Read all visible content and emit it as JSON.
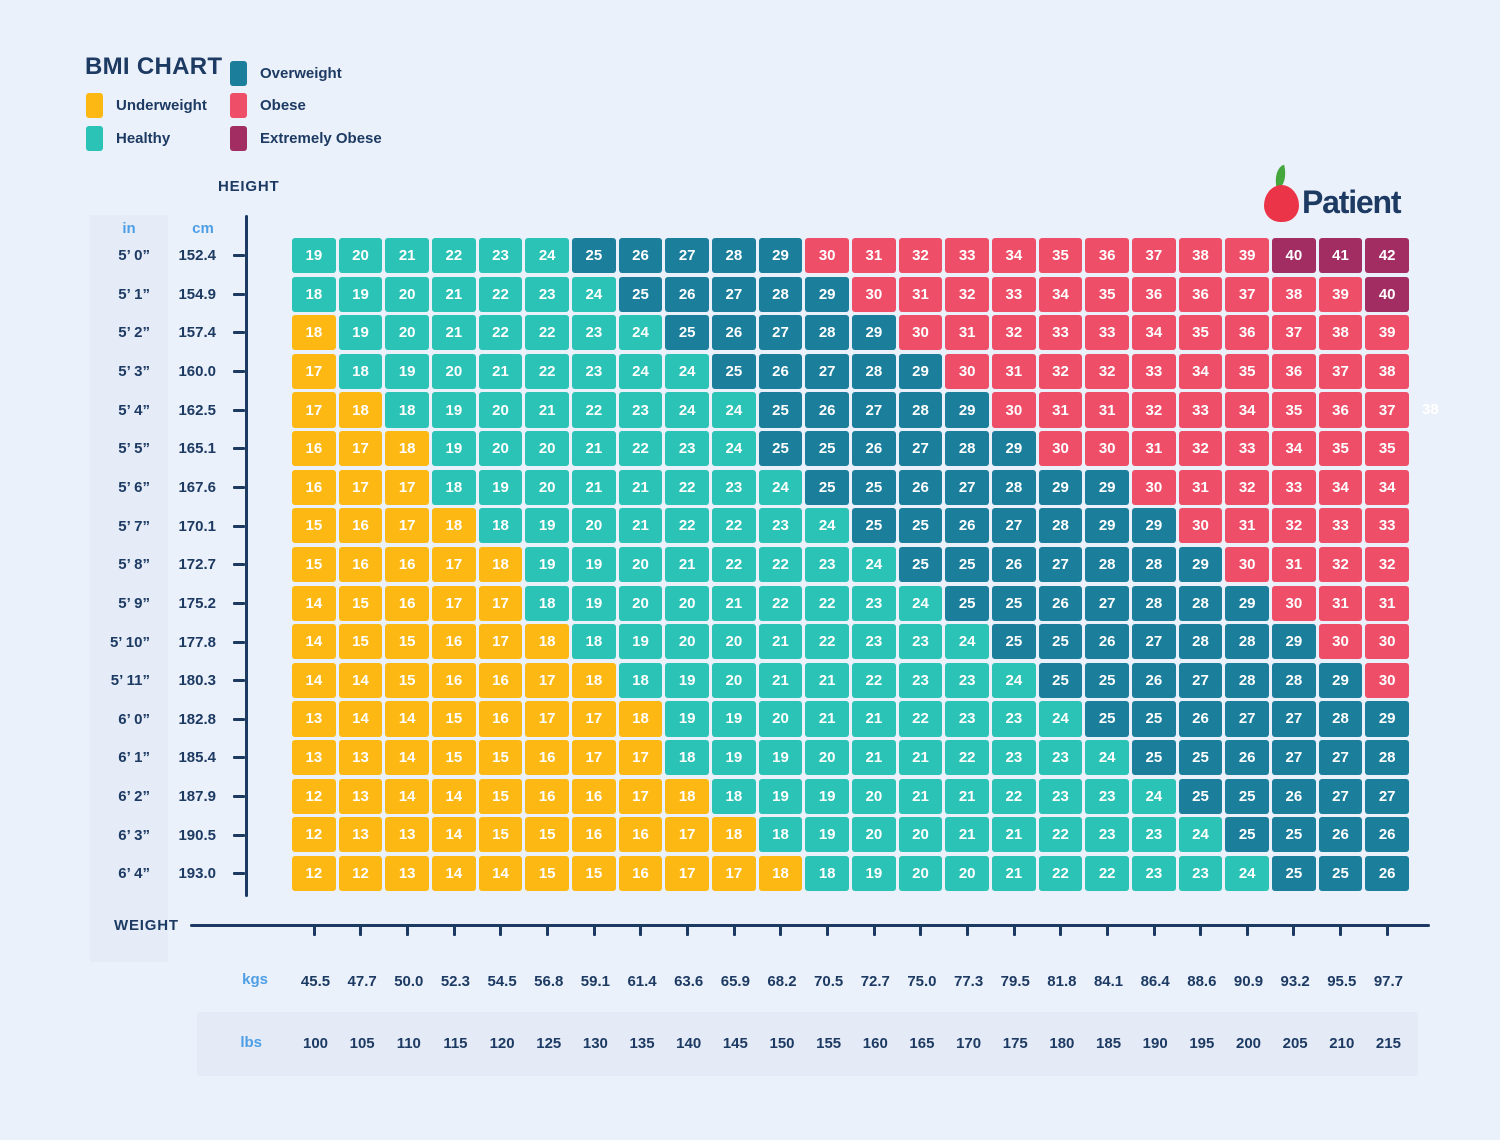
{
  "title": "BMI CHART",
  "legend": [
    {
      "key": "U",
      "label": "Underweight",
      "color": "#FDB813"
    },
    {
      "key": "H",
      "label": "Healthy",
      "color": "#2BC3B5"
    },
    {
      "key": "O",
      "label": "Overweight",
      "color": "#1B7E9B"
    },
    {
      "key": "B",
      "label": "Obese",
      "color": "#EF4E68"
    },
    {
      "key": "X",
      "label": "Extremely Obese",
      "color": "#A12D63"
    }
  ],
  "logo": {
    "brand": "Patient"
  },
  "axes": {
    "height_label": "HEIGHT",
    "weight_label": "WEIGHT",
    "in_header": "in",
    "cm_header": "cm",
    "kgs_label": "kgs",
    "lbs_label": "lbs"
  },
  "colors": {
    "background": "#EBF1FA",
    "band": "#E5ECF7",
    "navy_text": "#1D3A63",
    "unit_blue": "#4D9EE5",
    "apple_red": "#EB3448",
    "leaf_green": "#45A63C"
  },
  "stray_value": "38",
  "chart_data": {
    "type": "heatmap",
    "title": "BMI CHART",
    "x_axis": {
      "label": "WEIGHT",
      "kgs": [
        "45.5",
        "47.7",
        "50.0",
        "52.3",
        "54.5",
        "56.8",
        "59.1",
        "61.4",
        "63.6",
        "65.9",
        "68.2",
        "70.5",
        "72.7",
        "75.0",
        "77.3",
        "79.5",
        "81.8",
        "84.1",
        "86.4",
        "88.6",
        "90.9",
        "93.2",
        "95.5",
        "97.7"
      ],
      "lbs": [
        "100",
        "105",
        "110",
        "115",
        "120",
        "125",
        "130",
        "135",
        "140",
        "145",
        "150",
        "155",
        "160",
        "165",
        "170",
        "175",
        "180",
        "185",
        "190",
        "195",
        "200",
        "205",
        "210",
        "215"
      ]
    },
    "y_axis": {
      "label": "HEIGHT",
      "units": [
        "in",
        "cm"
      ]
    },
    "category_names": {
      "U": "Underweight",
      "H": "Healthy",
      "O": "Overweight",
      "B": "Obese",
      "X": "Extremely Obese"
    },
    "rows": [
      {
        "ft": "5’ 0”",
        "cm": "152.4",
        "values": [
          19,
          20,
          21,
          22,
          23,
          24,
          25,
          26,
          27,
          28,
          29,
          30,
          31,
          32,
          33,
          34,
          35,
          36,
          37,
          38,
          39,
          40,
          41,
          42
        ],
        "cats": "HHHHHHOOOOOBBBBBBBBBBXXX"
      },
      {
        "ft": "5’ 1”",
        "cm": "154.9",
        "values": [
          18,
          19,
          20,
          21,
          22,
          23,
          24,
          25,
          26,
          27,
          28,
          29,
          30,
          31,
          32,
          33,
          34,
          35,
          36,
          36,
          37,
          38,
          39,
          40
        ],
        "cats": "HHHHHHHOOOOOBBBBBBBBBBBX"
      },
      {
        "ft": "5’ 2”",
        "cm": "157.4",
        "values": [
          18,
          19,
          20,
          21,
          22,
          22,
          23,
          24,
          25,
          26,
          27,
          28,
          29,
          30,
          31,
          32,
          33,
          33,
          34,
          35,
          36,
          37,
          38,
          39
        ],
        "cats": "UHHHHHHHOOOOOBBBBBBBBBBB"
      },
      {
        "ft": "5’ 3”",
        "cm": "160.0",
        "values": [
          17,
          18,
          19,
          20,
          21,
          22,
          23,
          24,
          24,
          25,
          26,
          27,
          28,
          29,
          30,
          31,
          32,
          32,
          33,
          34,
          35,
          36,
          37,
          38
        ],
        "cats": "UHHHHHHHHOOOOOBBBBBBBBBB"
      },
      {
        "ft": "5’ 4”",
        "cm": "162.5",
        "values": [
          17,
          18,
          18,
          19,
          20,
          21,
          22,
          23,
          24,
          24,
          25,
          26,
          27,
          28,
          29,
          30,
          31,
          31,
          32,
          33,
          34,
          35,
          36,
          37
        ],
        "cats": "UUHHHHHHHHOOOOOBBBBBBBBB"
      },
      {
        "ft": "5’ 5”",
        "cm": "165.1",
        "values": [
          16,
          17,
          18,
          19,
          20,
          20,
          21,
          22,
          23,
          24,
          25,
          25,
          26,
          27,
          28,
          29,
          30,
          30,
          31,
          32,
          33,
          34,
          35,
          35
        ],
        "cats": "UUUHHHHHHHOOOOOOBBBBBBBB"
      },
      {
        "ft": "5’ 6”",
        "cm": "167.6",
        "values": [
          16,
          17,
          17,
          18,
          19,
          20,
          21,
          21,
          22,
          23,
          24,
          25,
          25,
          26,
          27,
          28,
          29,
          29,
          30,
          31,
          32,
          33,
          34,
          34
        ],
        "cats": "UUUHHHHHHHHOOOOOOOBBBBBB"
      },
      {
        "ft": "5’ 7”",
        "cm": "170.1",
        "values": [
          15,
          16,
          17,
          18,
          18,
          19,
          20,
          21,
          22,
          22,
          23,
          24,
          25,
          25,
          26,
          27,
          28,
          29,
          29,
          30,
          31,
          32,
          33,
          33
        ],
        "cats": "UUUUHHHHHHHHOOOOOOOBBBBB"
      },
      {
        "ft": "5’ 8”",
        "cm": "172.7",
        "values": [
          15,
          16,
          16,
          17,
          18,
          19,
          19,
          20,
          21,
          22,
          22,
          23,
          24,
          25,
          25,
          26,
          27,
          28,
          28,
          29,
          30,
          31,
          32,
          32
        ],
        "cats": "UUUUUHHHHHHHHOOOOOOOBBBB"
      },
      {
        "ft": "5’ 9”",
        "cm": "175.2",
        "values": [
          14,
          15,
          16,
          17,
          17,
          18,
          19,
          20,
          20,
          21,
          22,
          22,
          23,
          24,
          25,
          25,
          26,
          27,
          28,
          28,
          29,
          30,
          31,
          31
        ],
        "cats": "UUUUUHHHHHHHHHOOOOOOOBBB"
      },
      {
        "ft": "5’ 10”",
        "cm": "177.8",
        "values": [
          14,
          15,
          15,
          16,
          17,
          18,
          18,
          19,
          20,
          20,
          21,
          22,
          23,
          23,
          24,
          25,
          25,
          26,
          27,
          28,
          28,
          29,
          30,
          30
        ],
        "cats": "UUUUUUHHHHHHHHHOOOOOOOBB"
      },
      {
        "ft": "5’ 11”",
        "cm": "180.3",
        "values": [
          14,
          14,
          15,
          16,
          16,
          17,
          18,
          18,
          19,
          20,
          21,
          21,
          22,
          23,
          23,
          24,
          25,
          25,
          26,
          27,
          28,
          28,
          29,
          30
        ],
        "cats": "UUUUUUUHHHHHHHHHOOOOOOOB"
      },
      {
        "ft": "6’ 0”",
        "cm": "182.8",
        "values": [
          13,
          14,
          14,
          15,
          16,
          17,
          17,
          18,
          19,
          19,
          20,
          21,
          21,
          22,
          23,
          23,
          24,
          25,
          25,
          26,
          27,
          27,
          28,
          29
        ],
        "cats": "UUUUUUUUHHHHHHHHHOOOOOOO"
      },
      {
        "ft": "6’ 1”",
        "cm": "185.4",
        "values": [
          13,
          13,
          14,
          15,
          15,
          16,
          17,
          17,
          18,
          19,
          19,
          20,
          21,
          21,
          22,
          23,
          23,
          24,
          25,
          25,
          26,
          27,
          27,
          28
        ],
        "cats": "UUUUUUUUHHHHHHHHHHOOOOOO"
      },
      {
        "ft": "6’ 2”",
        "cm": "187.9",
        "values": [
          12,
          13,
          14,
          14,
          15,
          16,
          16,
          17,
          18,
          18,
          19,
          19,
          20,
          21,
          21,
          22,
          23,
          23,
          24,
          25,
          25,
          26,
          27,
          27
        ],
        "cats": "UUUUUUUUUHHHHHHHHHHOOOOO"
      },
      {
        "ft": "6’ 3”",
        "cm": "190.5",
        "values": [
          12,
          13,
          13,
          14,
          15,
          15,
          16,
          16,
          17,
          18,
          18,
          19,
          20,
          20,
          21,
          21,
          22,
          23,
          23,
          24,
          25,
          25,
          26,
          26
        ],
        "cats": "UUUUUUUUUUHHHHHHHHHHOOOO"
      },
      {
        "ft": "6’ 4”",
        "cm": "193.0",
        "values": [
          12,
          12,
          13,
          14,
          14,
          15,
          15,
          16,
          17,
          17,
          18,
          18,
          19,
          20,
          20,
          21,
          22,
          22,
          23,
          23,
          24,
          25,
          25,
          26
        ],
        "cats": "UUUUUUUUUUUHHHHHHHHHHOOO"
      }
    ]
  }
}
